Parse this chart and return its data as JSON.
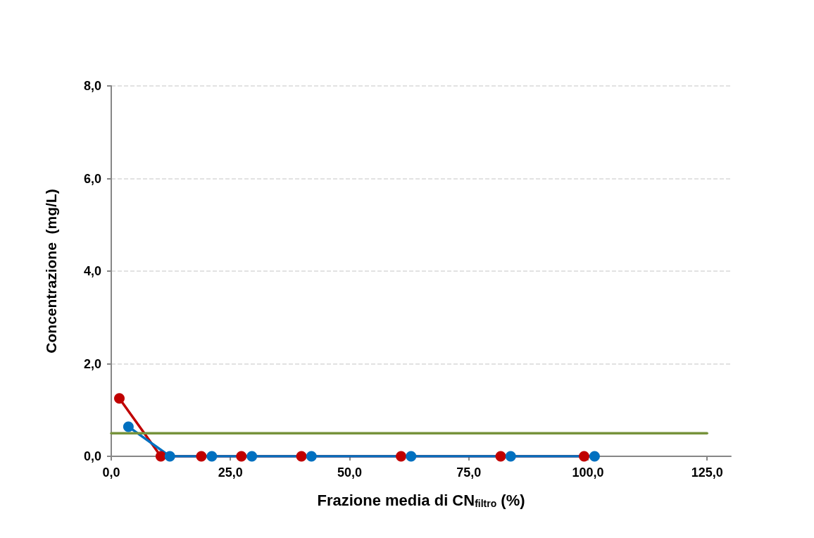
{
  "chart_data": {
    "type": "line",
    "xlabel": "Frazione media di CN$_{filtro}$ (%)",
    "ylabel": "Concentrazione  (mg/L)",
    "xlim": [
      0,
      130
    ],
    "xticks": [
      {
        "value": 0,
        "label": "0,0"
      },
      {
        "value": 25,
        "label": "25,0"
      },
      {
        "value": 50,
        "label": "50,0"
      },
      {
        "value": 75,
        "label": "75,0"
      },
      {
        "value": 100,
        "label": "100,0"
      },
      {
        "value": 125,
        "label": "125,0"
      }
    ],
    "ylim": [
      0,
      8
    ],
    "yticks": [
      {
        "value": 0,
        "label": "0,0"
      },
      {
        "value": 2,
        "label": "2,0"
      },
      {
        "value": 4,
        "label": "4,0"
      },
      {
        "value": 6,
        "label": "6,0"
      },
      {
        "value": 8,
        "label": "8,0"
      }
    ],
    "grid": "y",
    "marker": "circle",
    "line_style": "solid",
    "series": [
      {
        "color": "#c00000",
        "x": [
          1.7,
          10.4,
          18.9,
          27.3,
          39.9,
          60.8,
          81.7,
          99.2
        ],
        "values": [
          1.25,
          0,
          0,
          0,
          0,
          0,
          0,
          0
        ]
      },
      {
        "color": "#0070c0",
        "x": [
          3.6,
          12.3,
          21.1,
          29.5,
          42.0,
          62.9,
          83.8,
          101.4
        ],
        "values": [
          0.64,
          0,
          0,
          0,
          0,
          0,
          0,
          0
        ]
      },
      {
        "color": "#77933c",
        "x": [
          0,
          125
        ],
        "values": [
          0.5,
          0.5
        ],
        "marker": "none"
      }
    ]
  }
}
